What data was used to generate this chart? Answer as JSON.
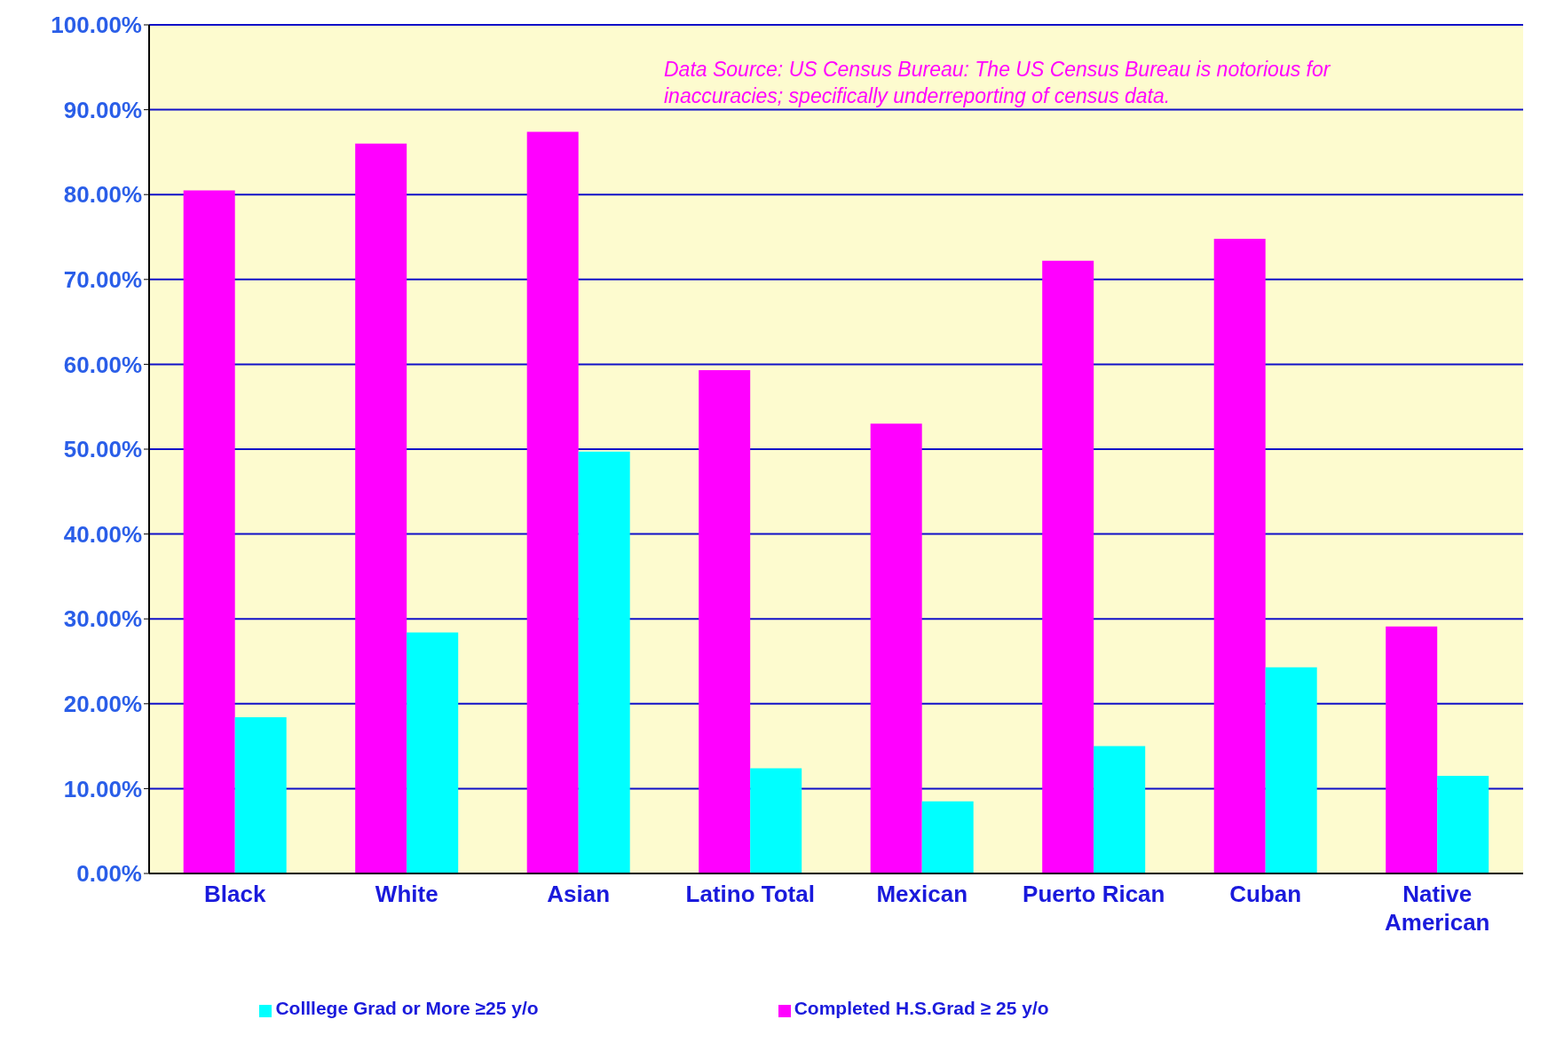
{
  "chart_data": {
    "type": "bar",
    "categories": [
      "Black",
      "White",
      "Asian",
      "Latino Total",
      "Mexican",
      "Puerto Rican",
      "Cuban",
      "Native American"
    ],
    "series": [
      {
        "name": "Completed H.S.Grad ≥ 25 y/o",
        "color": "#ff00ff",
        "values": [
          80.5,
          86.0,
          87.4,
          59.3,
          53.0,
          72.2,
          74.8,
          29.1
        ]
      },
      {
        "name": "Colllege Grad or More ≥25 y/o",
        "color": "#00ffff",
        "values": [
          18.4,
          28.4,
          49.7,
          12.4,
          8.5,
          15.0,
          24.3,
          11.5
        ]
      }
    ],
    "ylim": [
      0,
      100
    ],
    "yticks": [
      {
        "value": 0,
        "label": "0.00%"
      },
      {
        "value": 10,
        "label": "10.00%"
      },
      {
        "value": 20,
        "label": "20.00%"
      },
      {
        "value": 30,
        "label": "30.00%"
      },
      {
        "value": 40,
        "label": "40.00%"
      },
      {
        "value": 50,
        "label": "50.00%"
      },
      {
        "value": 60,
        "label": "60.00%"
      },
      {
        "value": 70,
        "label": "70.00%"
      },
      {
        "value": 80,
        "label": "80.00%"
      },
      {
        "value": 90,
        "label": "90.00%"
      },
      {
        "value": 100,
        "label": "100.00%"
      }
    ],
    "grid": "y",
    "legend": "bottom",
    "annotations": [
      "Data Source:  US Census Bureau:  The US Census Bureau is notorious for inaccuracies; specifically underreporting of census data."
    ]
  }
}
